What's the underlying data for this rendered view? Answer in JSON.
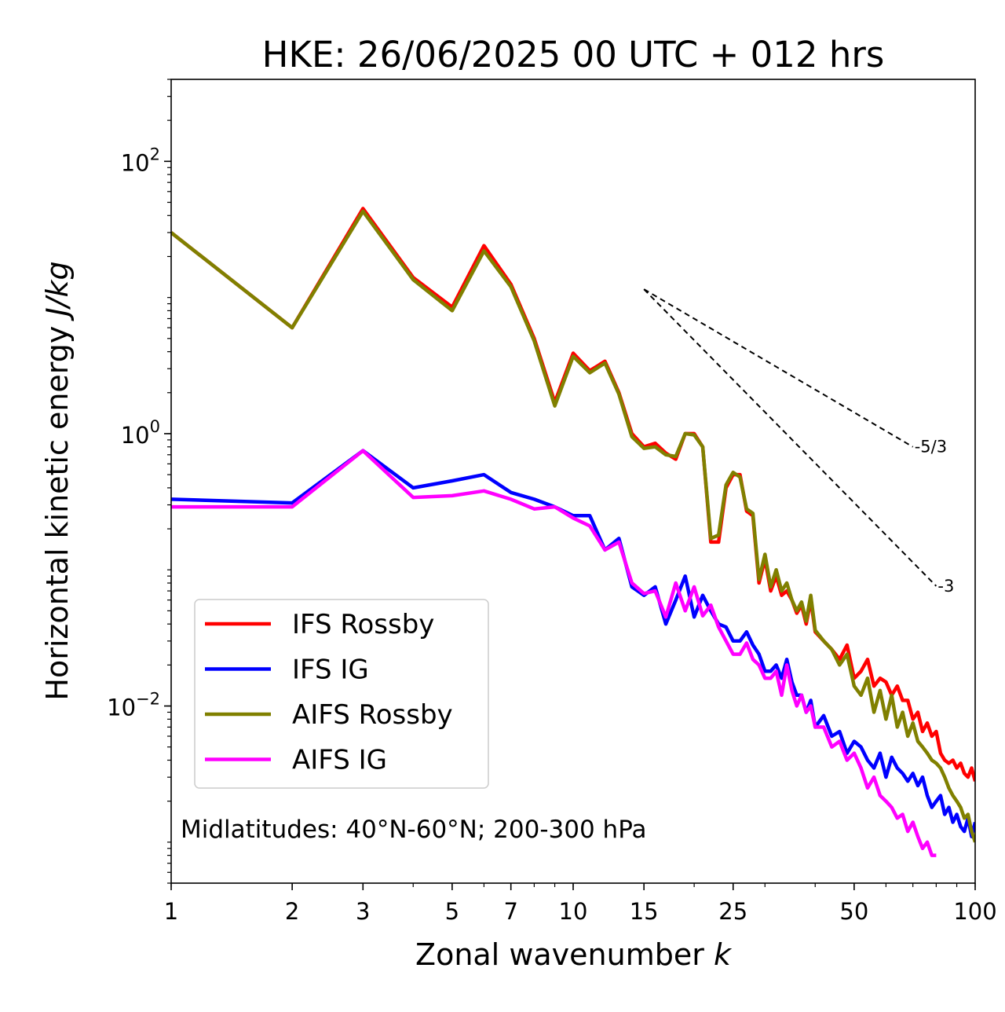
{
  "chart_data": {
    "type": "line",
    "title": "HKE: 26/06/2025 00 UTC + 012 hrs",
    "xlabel": "Zonal wavenumber k",
    "ylabel": "Horizontal kinetic energy J/kg",
    "xscale": "log",
    "yscale": "log",
    "xlim": [
      1,
      100
    ],
    "ylim": [
      0.0005,
      400
    ],
    "x_ticks": [
      1,
      2,
      3,
      5,
      7,
      10,
      15,
      25,
      50,
      100
    ],
    "x_tick_labels": [
      "1",
      "2",
      "3",
      "5",
      "7",
      "10",
      "15",
      "25",
      "50",
      "100"
    ],
    "y_ticks": [
      0.01,
      1,
      100
    ],
    "y_tick_labels": [
      "10",
      "10",
      "10"
    ],
    "y_tick_exponents": [
      "−2",
      "0",
      "2"
    ],
    "legend_position": "lower-left",
    "annotation": "Midlatitudes: 40°N-60°N; 200-300 hPa",
    "reference_slopes": [
      {
        "label": "-5/3",
        "x": [
          15,
          70
        ],
        "y": [
          11.5,
          0.8
        ]
      },
      {
        "label": "-3",
        "x": [
          15,
          80
        ],
        "y": [
          11.5,
          0.076
        ]
      }
    ],
    "series": [
      {
        "name": "IFS Rossby",
        "color": "#ff0000",
        "x": [
          1,
          2,
          3,
          4,
          5,
          6,
          7,
          8,
          9,
          10,
          11,
          12,
          13,
          14,
          15,
          16,
          17,
          18,
          19,
          20,
          21,
          22,
          23,
          24,
          25,
          26,
          27,
          28,
          29,
          30,
          31,
          32,
          33,
          34,
          35,
          36,
          37,
          38,
          39,
          40,
          42,
          44,
          46,
          48,
          50,
          52,
          54,
          56,
          58,
          60,
          62,
          64,
          66,
          68,
          70,
          72,
          74,
          76,
          78,
          80,
          82,
          84,
          86,
          88,
          90,
          92,
          94,
          96,
          98,
          100
        ],
        "y": [
          30,
          6,
          45,
          14,
          8.5,
          24,
          12.5,
          5,
          1.7,
          3.9,
          2.9,
          3.4,
          2.0,
          1.0,
          0.8,
          0.85,
          0.72,
          0.65,
          1.0,
          1.0,
          0.8,
          0.16,
          0.16,
          0.4,
          0.5,
          0.5,
          0.27,
          0.25,
          0.08,
          0.12,
          0.07,
          0.09,
          0.065,
          0.07,
          0.06,
          0.048,
          0.055,
          0.04,
          0.06,
          0.035,
          0.03,
          0.026,
          0.022,
          0.028,
          0.016,
          0.018,
          0.022,
          0.014,
          0.016,
          0.015,
          0.012,
          0.014,
          0.011,
          0.011,
          0.008,
          0.009,
          0.0065,
          0.0075,
          0.006,
          0.0065,
          0.0045,
          0.004,
          0.0038,
          0.004,
          0.0035,
          0.0038,
          0.0032,
          0.003,
          0.0035,
          0.0028
        ]
      },
      {
        "name": "IFS IG",
        "color": "#0000ff",
        "x": [
          1,
          2,
          3,
          4,
          5,
          6,
          7,
          8,
          9,
          10,
          11,
          12,
          13,
          14,
          15,
          16,
          17,
          18,
          19,
          20,
          21,
          22,
          23,
          24,
          25,
          26,
          27,
          28,
          29,
          30,
          31,
          32,
          33,
          34,
          35,
          36,
          37,
          38,
          39,
          40,
          42,
          44,
          46,
          48,
          50,
          52,
          54,
          56,
          58,
          60,
          62,
          64,
          66,
          68,
          70,
          72,
          74,
          76,
          78,
          80,
          82,
          84,
          86,
          88,
          90,
          92,
          94,
          96,
          98,
          100
        ],
        "y": [
          0.33,
          0.31,
          0.75,
          0.4,
          0.45,
          0.5,
          0.37,
          0.33,
          0.29,
          0.25,
          0.25,
          0.14,
          0.17,
          0.075,
          0.065,
          0.075,
          0.04,
          0.06,
          0.09,
          0.045,
          0.065,
          0.05,
          0.04,
          0.038,
          0.03,
          0.03,
          0.035,
          0.028,
          0.024,
          0.018,
          0.018,
          0.02,
          0.016,
          0.022,
          0.015,
          0.012,
          0.012,
          0.009,
          0.011,
          0.007,
          0.0085,
          0.006,
          0.0065,
          0.0045,
          0.0055,
          0.005,
          0.004,
          0.0035,
          0.0045,
          0.003,
          0.0042,
          0.0035,
          0.0032,
          0.0028,
          0.0032,
          0.0026,
          0.003,
          0.0022,
          0.0018,
          0.002,
          0.0022,
          0.0016,
          0.0018,
          0.0014,
          0.0016,
          0.0013,
          0.0012,
          0.0015,
          0.0011,
          0.0014
        ]
      },
      {
        "name": "AIFS Rossby",
        "color": "#808000",
        "x": [
          1,
          2,
          3,
          4,
          5,
          6,
          7,
          8,
          9,
          10,
          11,
          12,
          13,
          14,
          15,
          16,
          17,
          18,
          19,
          20,
          21,
          22,
          23,
          24,
          25,
          26,
          27,
          28,
          29,
          30,
          31,
          32,
          33,
          34,
          35,
          36,
          37,
          38,
          39,
          40,
          42,
          44,
          46,
          48,
          50,
          52,
          54,
          56,
          58,
          60,
          62,
          64,
          66,
          68,
          70,
          72,
          74,
          76,
          78,
          80,
          82,
          84,
          86,
          88,
          90,
          92,
          94,
          96,
          98,
          100
        ],
        "y": [
          30,
          6,
          43,
          13.5,
          8,
          22,
          12,
          4.8,
          1.6,
          3.7,
          2.8,
          3.3,
          1.95,
          0.95,
          0.78,
          0.8,
          0.7,
          0.68,
          1.0,
          0.98,
          0.8,
          0.17,
          0.18,
          0.42,
          0.52,
          0.48,
          0.28,
          0.26,
          0.085,
          0.13,
          0.075,
          0.1,
          0.07,
          0.08,
          0.06,
          0.05,
          0.058,
          0.042,
          0.065,
          0.036,
          0.03,
          0.026,
          0.02,
          0.024,
          0.014,
          0.012,
          0.016,
          0.009,
          0.013,
          0.008,
          0.012,
          0.007,
          0.009,
          0.006,
          0.0075,
          0.0055,
          0.005,
          0.0045,
          0.004,
          0.0038,
          0.0035,
          0.003,
          0.0025,
          0.0022,
          0.002,
          0.0018,
          0.0015,
          0.0016,
          0.0012,
          0.001
        ]
      },
      {
        "name": "AIFS IG",
        "color": "#ff00ff",
        "x": [
          1,
          2,
          3,
          4,
          5,
          6,
          7,
          8,
          9,
          10,
          11,
          12,
          13,
          14,
          15,
          16,
          17,
          18,
          19,
          20,
          21,
          22,
          23,
          24,
          25,
          26,
          27,
          28,
          29,
          30,
          31,
          32,
          33,
          34,
          35,
          36,
          37,
          38,
          39,
          40,
          42,
          44,
          46,
          48,
          50,
          52,
          54,
          56,
          58,
          60,
          62,
          64,
          66,
          68,
          70,
          72,
          74,
          76,
          78,
          80
        ],
        "y": [
          0.29,
          0.29,
          0.75,
          0.34,
          0.35,
          0.38,
          0.33,
          0.28,
          0.29,
          0.24,
          0.21,
          0.14,
          0.16,
          0.08,
          0.067,
          0.07,
          0.045,
          0.08,
          0.05,
          0.075,
          0.046,
          0.055,
          0.038,
          0.03,
          0.024,
          0.024,
          0.029,
          0.022,
          0.02,
          0.016,
          0.016,
          0.018,
          0.012,
          0.02,
          0.013,
          0.01,
          0.012,
          0.009,
          0.01,
          0.007,
          0.007,
          0.005,
          0.0055,
          0.004,
          0.0045,
          0.0035,
          0.0025,
          0.003,
          0.0022,
          0.002,
          0.0018,
          0.0015,
          0.0016,
          0.0012,
          0.0014,
          0.0011,
          0.0009,
          0.001,
          0.0008,
          0.0008
        ]
      }
    ]
  }
}
